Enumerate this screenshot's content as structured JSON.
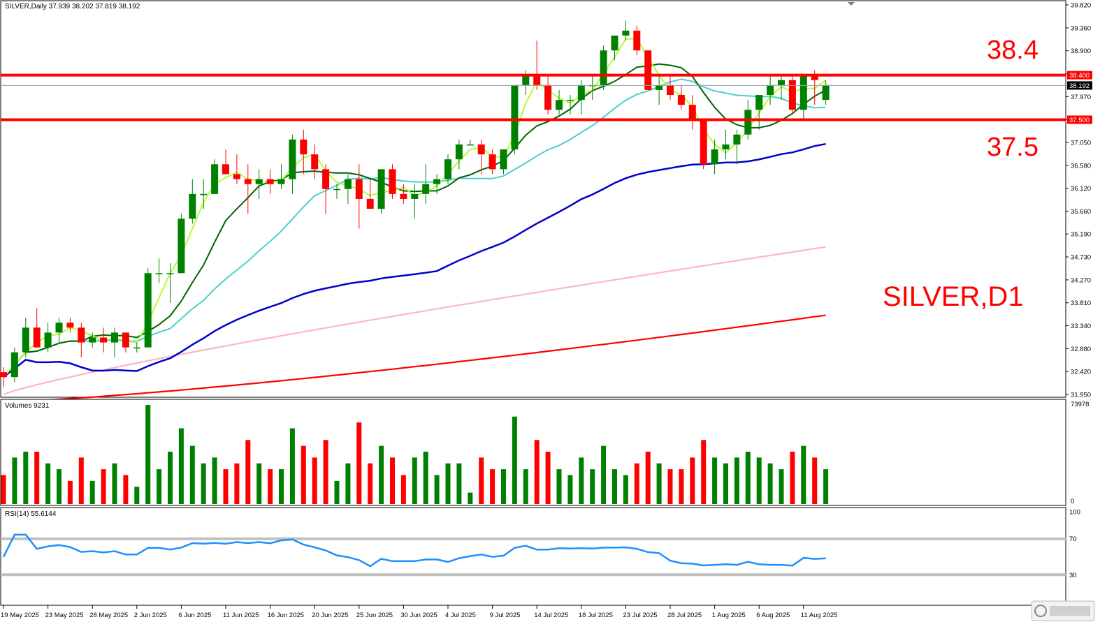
{
  "header": {
    "symbol_line": "SILVER,Daily  37.939 38.202 37.819 38.192"
  },
  "watermark": "SILVER,D1",
  "labels": {
    "upper_level": "38.4",
    "lower_level": "37.5"
  },
  "colors": {
    "bull": "#008000",
    "bear": "#ff0000",
    "level": "#ff0000",
    "ma_fast": "#adff2f",
    "ma_mid": "#006400",
    "ma_cyan": "#48d1cc",
    "ma_blue": "#0000cd",
    "ma_pink": "#ffb6c1",
    "ma_red": "#ff0000",
    "rsi": "#1e90ff"
  },
  "chart_data": [
    {
      "type": "candlestick",
      "title": "SILVER,Daily",
      "ylim": [
        31.95,
        39.82
      ],
      "y_ticks": [
        "39.820",
        "39.360",
        "38.900",
        "38.430",
        "37.970",
        "37.500",
        "37.050",
        "36.580",
        "36.120",
        "35.660",
        "35.190",
        "34.730",
        "34.270",
        "33.810",
        "33.340",
        "32.880",
        "32.420",
        "31.950"
      ],
      "price_tags": {
        "upper": "38.400",
        "current": "38.192",
        "lower": "37.500"
      },
      "horizontal_levels": [
        38.4,
        37.5
      ],
      "current_price": 38.192,
      "x_labels": [
        "19 May 2025",
        "23 May 2025",
        "28 May 2025",
        "2 Jun 2025",
        "6 Jun 2025",
        "11 Jun 2025",
        "16 Jun 2025",
        "20 Jun 2025",
        "25 Jun 2025",
        "30 Jun 2025",
        "4 Jul 2025",
        "9 Jul 2025",
        "14 Jul 2025",
        "18 Jul 2025",
        "23 Jul 2025",
        "28 Jul 2025",
        "1 Aug 2025",
        "6 Aug 2025",
        "11 Aug 2025"
      ],
      "candles": [
        [
          32.4,
          32.5,
          32.1,
          32.3
        ],
        [
          32.3,
          32.9,
          32.2,
          32.8
        ],
        [
          32.8,
          33.5,
          32.7,
          33.3
        ],
        [
          33.3,
          33.7,
          32.9,
          32.9
        ],
        [
          32.9,
          33.4,
          32.8,
          33.2
        ],
        [
          33.2,
          33.5,
          33.0,
          33.4
        ],
        [
          33.4,
          33.5,
          33.2,
          33.3
        ],
        [
          33.3,
          33.4,
          32.7,
          33.0
        ],
        [
          33.0,
          33.2,
          32.9,
          33.1
        ],
        [
          33.1,
          33.3,
          32.8,
          33.0
        ],
        [
          33.0,
          33.3,
          32.7,
          33.2
        ],
        [
          33.2,
          33.2,
          32.8,
          32.9
        ],
        [
          32.9,
          33.0,
          32.8,
          32.9
        ],
        [
          32.9,
          34.5,
          32.9,
          34.4
        ],
        [
          34.4,
          34.7,
          34.2,
          34.4
        ],
        [
          34.4,
          34.6,
          33.8,
          34.4
        ],
        [
          34.4,
          35.6,
          34.4,
          35.5
        ],
        [
          35.5,
          36.3,
          35.4,
          36.0
        ],
        [
          36.0,
          36.3,
          35.7,
          36.0
        ],
        [
          36.0,
          36.7,
          36.0,
          36.6
        ],
        [
          36.6,
          36.9,
          36.4,
          36.4
        ],
        [
          36.4,
          36.8,
          36.2,
          36.3
        ],
        [
          36.3,
          36.6,
          35.6,
          36.2
        ],
        [
          36.2,
          36.5,
          35.9,
          36.3
        ],
        [
          36.3,
          36.5,
          36.0,
          36.2
        ],
        [
          36.2,
          36.6,
          36.1,
          36.3
        ],
        [
          36.3,
          37.2,
          36.0,
          37.1
        ],
        [
          37.1,
          37.3,
          36.4,
          36.8
        ],
        [
          36.8,
          37.0,
          36.3,
          36.5
        ],
        [
          36.5,
          36.6,
          35.6,
          36.1
        ],
        [
          36.1,
          36.2,
          35.9,
          36.1
        ],
        [
          36.1,
          36.4,
          35.8,
          36.3
        ],
        [
          36.3,
          36.6,
          35.3,
          35.9
        ],
        [
          35.9,
          36.3,
          35.7,
          35.7
        ],
        [
          35.7,
          36.5,
          35.6,
          36.5
        ],
        [
          36.5,
          36.6,
          35.9,
          36.0
        ],
        [
          36.0,
          36.2,
          35.8,
          35.9
        ],
        [
          35.9,
          36.2,
          35.5,
          36.0
        ],
        [
          36.0,
          36.6,
          35.8,
          36.2
        ],
        [
          36.2,
          36.4,
          36.0,
          36.3
        ],
        [
          36.3,
          36.8,
          36.2,
          36.7
        ],
        [
          36.7,
          37.1,
          36.5,
          37.0
        ],
        [
          37.0,
          37.1,
          37.0,
          37.0
        ],
        [
          37.0,
          37.1,
          36.4,
          36.8
        ],
        [
          36.8,
          36.9,
          36.4,
          36.5
        ],
        [
          36.5,
          36.9,
          36.4,
          36.9
        ],
        [
          36.9,
          38.2,
          36.8,
          38.2
        ],
        [
          38.2,
          38.5,
          38.0,
          38.4
        ],
        [
          38.4,
          39.1,
          38.1,
          38.2
        ],
        [
          38.2,
          38.4,
          37.6,
          37.7
        ],
        [
          37.7,
          38.1,
          37.6,
          37.9
        ],
        [
          37.9,
          38.0,
          37.6,
          37.9
        ],
        [
          37.9,
          38.3,
          37.6,
          38.2
        ],
        [
          38.2,
          38.4,
          37.9,
          38.2
        ],
        [
          38.2,
          39.0,
          38.1,
          38.9
        ],
        [
          38.9,
          39.2,
          38.7,
          39.2
        ],
        [
          39.2,
          39.5,
          39.1,
          39.3
        ],
        [
          39.3,
          39.4,
          38.8,
          38.9
        ],
        [
          38.9,
          38.9,
          38.1,
          38.1
        ],
        [
          38.1,
          38.4,
          37.8,
          38.2
        ],
        [
          38.2,
          38.4,
          37.9,
          38.0
        ],
        [
          38.0,
          38.2,
          37.7,
          37.8
        ],
        [
          37.8,
          38.0,
          37.3,
          37.5
        ],
        [
          37.5,
          37.5,
          36.5,
          36.6
        ],
        [
          36.6,
          37.1,
          36.4,
          36.9
        ],
        [
          36.9,
          37.3,
          36.7,
          37.0
        ],
        [
          37.0,
          37.3,
          36.6,
          37.2
        ],
        [
          37.2,
          37.9,
          37.1,
          37.7
        ],
        [
          37.7,
          38.0,
          37.3,
          38.0
        ],
        [
          38.0,
          38.4,
          37.8,
          38.2
        ],
        [
          38.2,
          38.4,
          37.9,
          38.3
        ],
        [
          38.3,
          38.4,
          37.6,
          37.7
        ],
        [
          37.7,
          38.4,
          37.5,
          38.4
        ],
        [
          38.4,
          38.5,
          37.8,
          38.3
        ],
        [
          37.9,
          38.3,
          37.8,
          38.2
        ]
      ]
    },
    {
      "type": "bar",
      "title": "Volumes 9231",
      "ylim": [
        0,
        73978
      ],
      "y_ticks": [
        "73978",
        "0"
      ]
    },
    {
      "type": "line",
      "title": "RSI(14) 55.6144",
      "ylim": [
        0,
        100
      ],
      "y_ticks": [
        "100",
        "70",
        "30"
      ],
      "levels": [
        70,
        30
      ]
    }
  ]
}
